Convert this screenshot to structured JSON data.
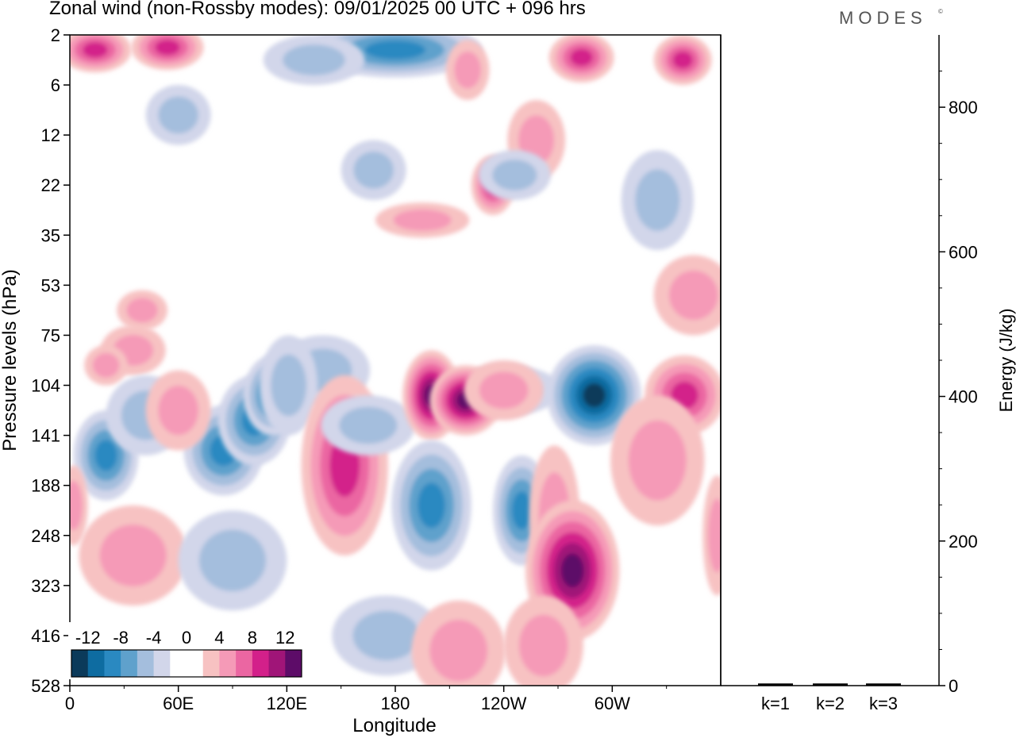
{
  "header": {
    "title": "Zonal wind (non-Rossby modes):  09/01/2025  00 UTC  + 096 hrs",
    "brand": "MODES",
    "brand_mark": "©"
  },
  "chart_data": {
    "type": "heatmap",
    "title": "Zonal wind (non-Rossby modes):  09/01/2025  00 UTC  + 096 hrs",
    "xlabel": "Longitude",
    "ylabel": "Pressure levels (hPa)",
    "x_ticks": [
      "0",
      "60E",
      "120E",
      "180",
      "120W",
      "60W"
    ],
    "x_tick_lon": [
      0,
      60,
      120,
      180,
      240,
      300
    ],
    "x_range": [
      0,
      360
    ],
    "y_ticks": [
      "2",
      "6",
      "12",
      "22",
      "35",
      "53",
      "75",
      "104",
      "141",
      "188",
      "248",
      "323",
      "416",
      "528"
    ],
    "y_axis_note": "inverted, top = 2 hPa, bottom = 528 hPa",
    "colorbar": {
      "labels": [
        "-12",
        "-8",
        "-4",
        "0",
        "4",
        "8",
        "12"
      ],
      "colors": [
        "#0b3a5a",
        "#0e6ca1",
        "#2a89c1",
        "#5fa1cc",
        "#a4bedd",
        "#d2d6ea",
        "#ffffff",
        "#ffffff",
        "#f7c2c2",
        "#f59ab7",
        "#eb66a2",
        "#d3208a",
        "#a01578",
        "#5d0c68"
      ],
      "position": "bottom-left"
    },
    "blobs": [
      {
        "lon": 14,
        "level_idx": 0.3,
        "value": 8,
        "w": 20,
        "h": 0.45
      },
      {
        "lon": 54,
        "level_idx": 0.25,
        "value": 8,
        "w": 20,
        "h": 0.45
      },
      {
        "lon": 180,
        "level_idx": 0.3,
        "value": -8,
        "w": 48,
        "h": 0.55
      },
      {
        "lon": 135,
        "level_idx": 0.5,
        "value": -4,
        "w": 28,
        "h": 0.5
      },
      {
        "lon": 283,
        "level_idx": 0.45,
        "value": 8,
        "w": 18,
        "h": 0.5
      },
      {
        "lon": 339,
        "level_idx": 0.5,
        "value": 8,
        "w": 16,
        "h": 0.5
      },
      {
        "lon": 220,
        "level_idx": 0.7,
        "value": 4,
        "w": 12,
        "h": 0.6
      },
      {
        "lon": 258,
        "level_idx": 2.1,
        "value": 4,
        "w": 16,
        "h": 0.8
      },
      {
        "lon": 234,
        "level_idx": 3.0,
        "value": 8,
        "w": 12,
        "h": 0.6
      },
      {
        "lon": 168,
        "level_idx": 2.7,
        "value": -4,
        "w": 18,
        "h": 0.6
      },
      {
        "lon": 325,
        "level_idx": 3.3,
        "value": -4,
        "w": 20,
        "h": 1.0
      },
      {
        "lon": 195,
        "level_idx": 3.7,
        "value": 4,
        "w": 26,
        "h": 0.35
      },
      {
        "lon": 40,
        "level_idx": 5.5,
        "value": 4,
        "w": 14,
        "h": 0.4
      },
      {
        "lon": 242,
        "level_idx": 7.1,
        "value": -4,
        "w": 30,
        "h": 0.5
      },
      {
        "lon": 345,
        "level_idx": 5.2,
        "value": 4,
        "w": 22,
        "h": 0.8
      },
      {
        "lon": 35,
        "level_idx": 6.3,
        "value": 4,
        "w": 18,
        "h": 0.5
      },
      {
        "lon": 20,
        "level_idx": 6.6,
        "value": 4,
        "w": 12,
        "h": 0.4
      },
      {
        "lon": 140,
        "level_idx": 6.7,
        "value": -4,
        "w": 26,
        "h": 0.7
      },
      {
        "lon": 20,
        "level_idx": 8.4,
        "value": -8,
        "w": 18,
        "h": 0.9
      },
      {
        "lon": 42,
        "level_idx": 7.6,
        "value": -4,
        "w": 22,
        "h": 0.8
      },
      {
        "lon": 85,
        "level_idx": 8.3,
        "value": -8,
        "w": 22,
        "h": 0.9
      },
      {
        "lon": 102,
        "level_idx": 7.7,
        "value": -8,
        "w": 20,
        "h": 0.9
      },
      {
        "lon": 112,
        "level_idx": 7.2,
        "value": -8,
        "w": 16,
        "h": 0.8
      },
      {
        "lon": 121,
        "level_idx": 7.0,
        "value": -4,
        "w": 16,
        "h": 1.0
      },
      {
        "lon": 60,
        "level_idx": 7.5,
        "value": 4,
        "w": 18,
        "h": 0.8
      },
      {
        "lon": 152,
        "level_idx": 8.6,
        "value": 8,
        "w": 24,
        "h": 1.8
      },
      {
        "lon": 165,
        "level_idx": 7.8,
        "value": -4,
        "w": 26,
        "h": 0.6
      },
      {
        "lon": 200,
        "level_idx": 7.2,
        "value": 12,
        "w": 16,
        "h": 0.9
      },
      {
        "lon": 219,
        "level_idx": 7.3,
        "value": 12,
        "w": 20,
        "h": 0.7
      },
      {
        "lon": 240,
        "level_idx": 7.1,
        "value": 4,
        "w": 22,
        "h": 0.6
      },
      {
        "lon": 290,
        "level_idx": 7.2,
        "value": -12,
        "w": 26,
        "h": 1.0
      },
      {
        "lon": 340,
        "level_idx": 7.2,
        "value": 8,
        "w": 22,
        "h": 0.8
      },
      {
        "lon": 325,
        "level_idx": 8.5,
        "value": 4,
        "w": 26,
        "h": 1.3
      },
      {
        "lon": 200,
        "level_idx": 9.4,
        "value": -8,
        "w": 22,
        "h": 1.3
      },
      {
        "lon": 250,
        "level_idx": 9.5,
        "value": -8,
        "w": 16,
        "h": 1.1
      },
      {
        "lon": 268,
        "level_idx": 9.6,
        "value": 4,
        "w": 14,
        "h": 1.4
      },
      {
        "lon": 278,
        "level_idx": 10.7,
        "value": 12,
        "w": 26,
        "h": 1.4
      },
      {
        "lon": 35,
        "level_idx": 10.4,
        "value": 4,
        "w": 30,
        "h": 1.0
      },
      {
        "lon": 90,
        "level_idx": 10.5,
        "value": -4,
        "w": 30,
        "h": 1.0
      },
      {
        "lon": 175,
        "level_idx": 12.0,
        "value": -4,
        "w": 30,
        "h": 0.8
      },
      {
        "lon": 215,
        "level_idx": 12.3,
        "value": 4,
        "w": 26,
        "h": 1.0
      },
      {
        "lon": 262,
        "level_idx": 12.2,
        "value": 4,
        "w": 22,
        "h": 1.0
      },
      {
        "lon": 2,
        "level_idx": 9.4,
        "value": 4,
        "w": 8,
        "h": 0.8
      },
      {
        "lon": 358,
        "level_idx": 10.0,
        "value": 4,
        "w": 8,
        "h": 1.2
      },
      {
        "lon": 246,
        "level_idx": 2.8,
        "value": -4,
        "w": 20,
        "h": 0.5
      },
      {
        "lon": 60,
        "level_idx": 1.6,
        "value": -4,
        "w": 18,
        "h": 0.6
      }
    ]
  },
  "energy_panel": {
    "ylabel": "Energy (J/kg)",
    "y_ticks": [
      "0",
      "200",
      "400",
      "600",
      "800"
    ],
    "y_tick_values": [
      0,
      200,
      400,
      600,
      800
    ],
    "ylim": [
      0,
      900
    ],
    "categories": [
      "k=1",
      "k=2",
      "k=3"
    ],
    "values": [
      3,
      3,
      3
    ]
  },
  "colors": {
    "axis": "#000000",
    "bar": "#000000"
  }
}
